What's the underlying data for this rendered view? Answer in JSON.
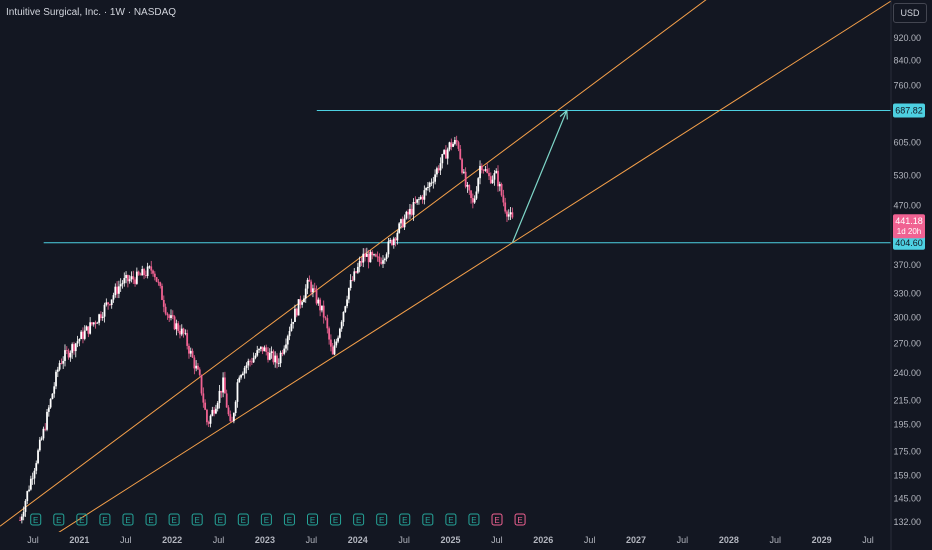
{
  "title": "Intuitive Surgical, Inc. · 1W · NASDAQ",
  "currency_label": "USD",
  "colors": {
    "background": "#131722",
    "candle_up": "#ffffff",
    "candle_down": "#f06292",
    "channel": "#f5a04a",
    "level": "#4dd0e1",
    "projection_arrow": "#7ed6c8",
    "earnings_badge": "#26a69a",
    "earnings_badge_recent": "#f06292",
    "axis_text": "#b2b5be",
    "current_price_tag": "#f06292",
    "level_tag": "#4dd0e1"
  },
  "chart_data": {
    "type": "candlestick",
    "timeframe": "1W",
    "scale": "log",
    "x_tick_labels": [
      "Jul",
      "2021",
      "Jul",
      "2022",
      "Jul",
      "2023",
      "Jul",
      "2024",
      "Jul",
      "2025",
      "Jul",
      "2026",
      "Jul",
      "2027",
      "Jul",
      "2028",
      "Jul",
      "2029",
      "Jul"
    ],
    "y_tick_labels": [
      "920.00",
      "840.00",
      "760.00",
      "687.82",
      "605.00",
      "530.00",
      "470.00",
      "441.18",
      "404.60",
      "370.00",
      "330.00",
      "300.00",
      "270.00",
      "240.00",
      "215.00",
      "195.00",
      "175.00",
      "159.00",
      "145.00",
      "132.00"
    ],
    "y_ticks": [
      920,
      840,
      760,
      605,
      530,
      470,
      370,
      330,
      300,
      270,
      240,
      215,
      195,
      175,
      159,
      145,
      132
    ],
    "price_trend": [
      {
        "date": "2020-06",
        "close": 133
      },
      {
        "date": "2020-09",
        "close": 190
      },
      {
        "date": "2020-11",
        "close": 250
      },
      {
        "date": "2021-01",
        "close": 270
      },
      {
        "date": "2021-04",
        "close": 300
      },
      {
        "date": "2021-07",
        "close": 345
      },
      {
        "date": "2021-09",
        "close": 352
      },
      {
        "date": "2021-11",
        "close": 365
      },
      {
        "date": "2022-01",
        "close": 300
      },
      {
        "date": "2022-03",
        "close": 280
      },
      {
        "date": "2022-05",
        "close": 235
      },
      {
        "date": "2022-06",
        "close": 195
      },
      {
        "date": "2022-08",
        "close": 230
      },
      {
        "date": "2022-09",
        "close": 190
      },
      {
        "date": "2022-10",
        "close": 240
      },
      {
        "date": "2023-01",
        "close": 265
      },
      {
        "date": "2023-03",
        "close": 250
      },
      {
        "date": "2023-05",
        "close": 300
      },
      {
        "date": "2023-07",
        "close": 345
      },
      {
        "date": "2023-09",
        "close": 300
      },
      {
        "date": "2023-10",
        "close": 255
      },
      {
        "date": "2023-12",
        "close": 335
      },
      {
        "date": "2024-02",
        "close": 385
      },
      {
        "date": "2024-04",
        "close": 375
      },
      {
        "date": "2024-07",
        "close": 440
      },
      {
        "date": "2024-10",
        "close": 500
      },
      {
        "date": "2025-01",
        "close": 600
      },
      {
        "date": "2025-02",
        "close": 605
      },
      {
        "date": "2025-03",
        "close": 510
      },
      {
        "date": "2025-04",
        "close": 470
      },
      {
        "date": "2025-05",
        "close": 560
      },
      {
        "date": "2025-06",
        "close": 525
      },
      {
        "date": "2025-07",
        "close": 530
      },
      {
        "date": "2025-08",
        "close": 470
      },
      {
        "date": "2025-09",
        "close": 441.18
      }
    ],
    "current_price": {
      "value": "441.18",
      "countdown": "1d 20h"
    },
    "horizontal_levels": [
      {
        "value": "687.82",
        "start_date": "2023-08"
      },
      {
        "value": "404.60",
        "start_date": "2020-09"
      }
    ],
    "channel_lines": [
      {
        "from": {
          "date": "2021-01",
          "value": 132
        },
        "to": {
          "date": "2025-09",
          "value": 404.6
        }
      },
      {
        "from": {
          "date": "2020-11",
          "value": 155
        },
        "to": {
          "date": "2025-06",
          "value": 560
        }
      }
    ],
    "projection_arrow": {
      "from": {
        "date": "2025-09",
        "value": 404.6
      },
      "to": {
        "date": "2026-04",
        "value": 687.82
      }
    },
    "earnings_badges": {
      "count": 22,
      "label": "E",
      "last_two_flagged": true
    }
  }
}
